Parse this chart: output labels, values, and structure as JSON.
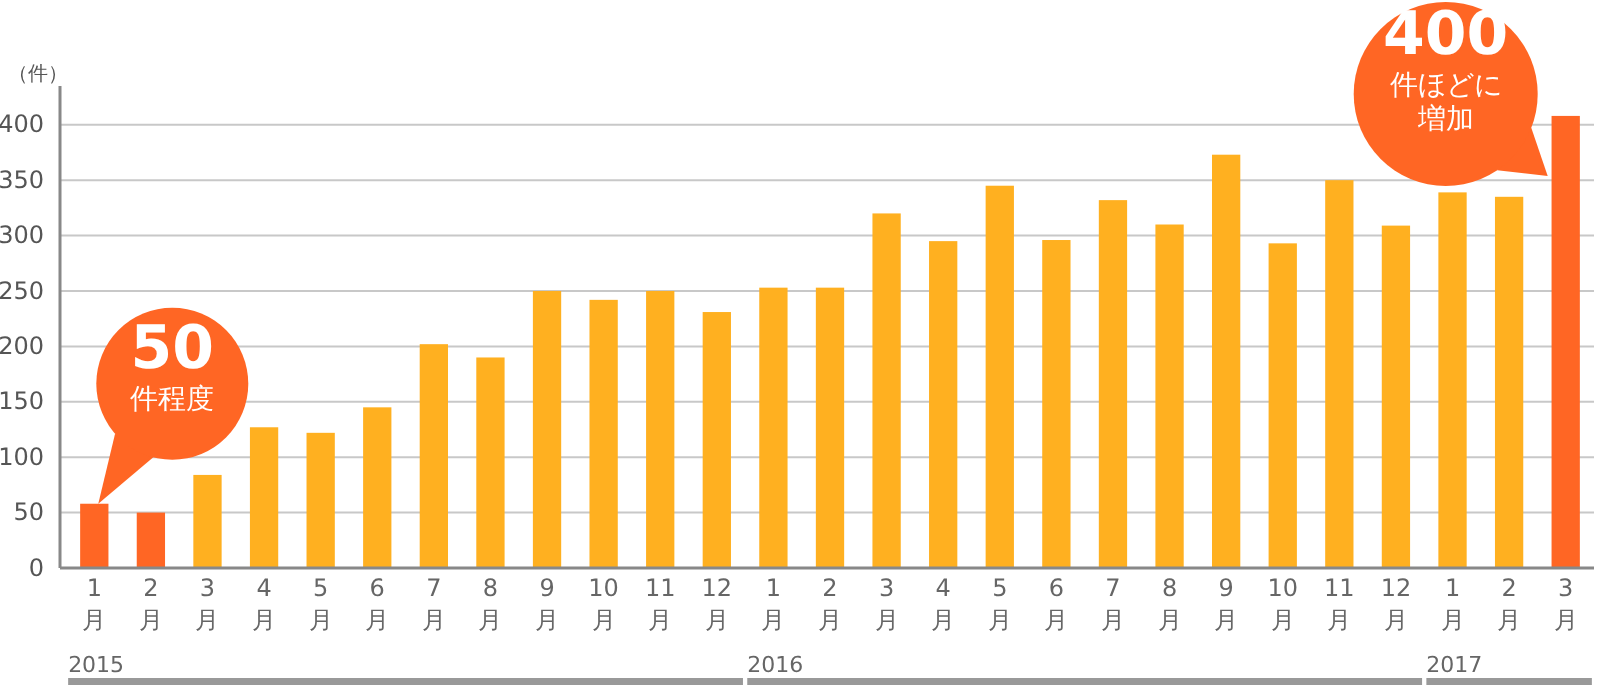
{
  "chart_data": {
    "type": "bar",
    "ylabel": "（件）",
    "categories": [
      "1月",
      "2月",
      "3月",
      "4月",
      "5月",
      "6月",
      "7月",
      "8月",
      "9月",
      "10月",
      "11月",
      "12月",
      "1月",
      "2月",
      "3月",
      "4月",
      "5月",
      "6月",
      "7月",
      "8月",
      "9月",
      "10月",
      "11月",
      "12月",
      "1月",
      "2月",
      "3月"
    ],
    "values": [
      58,
      50,
      84,
      127,
      122,
      145,
      202,
      190,
      250,
      242,
      250,
      231,
      253,
      253,
      320,
      295,
      345,
      296,
      332,
      310,
      373,
      293,
      350,
      309,
      339,
      335,
      408
    ],
    "colors": [
      "#ff6624",
      "#ff6624",
      "#ffb020",
      "#ffb020",
      "#ffb020",
      "#ffb020",
      "#ffb020",
      "#ffb020",
      "#ffb020",
      "#ffb020",
      "#ffb020",
      "#ffb020",
      "#ffb020",
      "#ffb020",
      "#ffb020",
      "#ffb020",
      "#ffb020",
      "#ffb020",
      "#ffb020",
      "#ffb020",
      "#ffb020",
      "#ffb020",
      "#ffb020",
      "#ffb020",
      "#ffb020",
      "#ffb020",
      "#ff6624"
    ],
    "ylim": [
      0,
      435
    ],
    "yticks": [
      0,
      50,
      100,
      150,
      200,
      250,
      300,
      350,
      400
    ],
    "grid": "y",
    "annotations": [
      "50件程度",
      "400件ほどに増加",
      "2015",
      "2016",
      "2017"
    ]
  }
}
